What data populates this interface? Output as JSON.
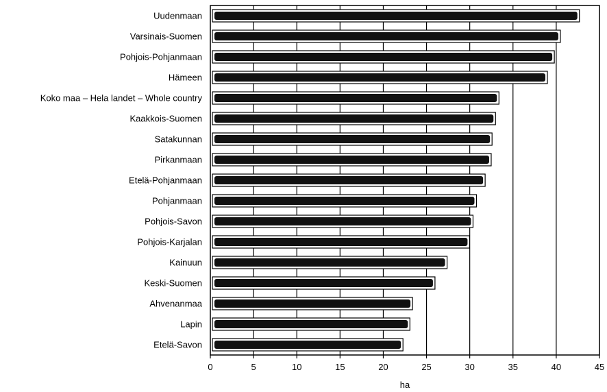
{
  "chart_data": {
    "type": "bar",
    "orientation": "horizontal",
    "categories": [
      "Uudenmaan",
      "Varsinais-Suomen",
      "Pohjois-Pohjanmaan",
      "Hämeen",
      "Koko maa – Hela landet – Whole country",
      "Kaakkois-Suomen",
      "Satakunnan",
      "Pirkanmaan",
      "Etelä-Pohjanmaan",
      "Pohjanmaan",
      "Pohjois-Savon",
      "Pohjois-Karjalan",
      "Kainuun",
      "Keski-Suomen",
      "Ahvenanmaa",
      "Lapin",
      "Etelä-Savon"
    ],
    "values": [
      42.6,
      40.4,
      39.7,
      38.9,
      33.3,
      32.9,
      32.5,
      32.4,
      31.7,
      30.7,
      30.3,
      29.9,
      27.3,
      25.9,
      23.3,
      23.0,
      22.2
    ],
    "xlabel": "ha",
    "ylabel": "",
    "xlim": [
      0,
      45
    ],
    "xticks": [
      0,
      5,
      10,
      15,
      20,
      25,
      30,
      35,
      40,
      45
    ],
    "grid": "vertical",
    "legend": "none",
    "bar_color": "#111111"
  }
}
